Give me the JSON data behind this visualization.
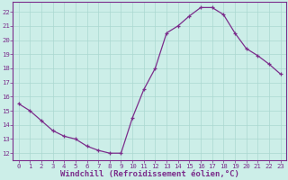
{
  "x": [
    0,
    1,
    2,
    3,
    4,
    5,
    6,
    7,
    8,
    9,
    10,
    11,
    12,
    13,
    14,
    15,
    16,
    17,
    18,
    19,
    20,
    21,
    22,
    23
  ],
  "y": [
    15.5,
    15.0,
    14.3,
    13.6,
    13.2,
    13.0,
    12.5,
    12.2,
    12.0,
    12.0,
    14.5,
    16.5,
    18.0,
    20.5,
    21.0,
    21.7,
    22.3,
    22.3,
    21.8,
    20.5,
    19.4,
    18.9,
    18.3,
    17.6
  ],
  "line_color": "#7b2d8b",
  "marker": "+",
  "marker_size": 3.5,
  "marker_linewidth": 0.9,
  "bg_color": "#cceee8",
  "grid_color": "#aad8d0",
  "xlabel": "Windchill (Refroidissement éolien,°C)",
  "xlim_min": -0.5,
  "xlim_max": 23.5,
  "ylim_min": 11.5,
  "ylim_max": 22.7,
  "yticks": [
    12,
    13,
    14,
    15,
    16,
    17,
    18,
    19,
    20,
    21,
    22
  ],
  "xticks": [
    0,
    1,
    2,
    3,
    4,
    5,
    6,
    7,
    8,
    9,
    10,
    11,
    12,
    13,
    14,
    15,
    16,
    17,
    18,
    19,
    20,
    21,
    22,
    23
  ],
  "tick_fontsize": 5.2,
  "xlabel_fontsize": 6.5,
  "line_width": 0.9,
  "spine_color": "#7b2d8b",
  "tick_color": "#7b2d8b"
}
